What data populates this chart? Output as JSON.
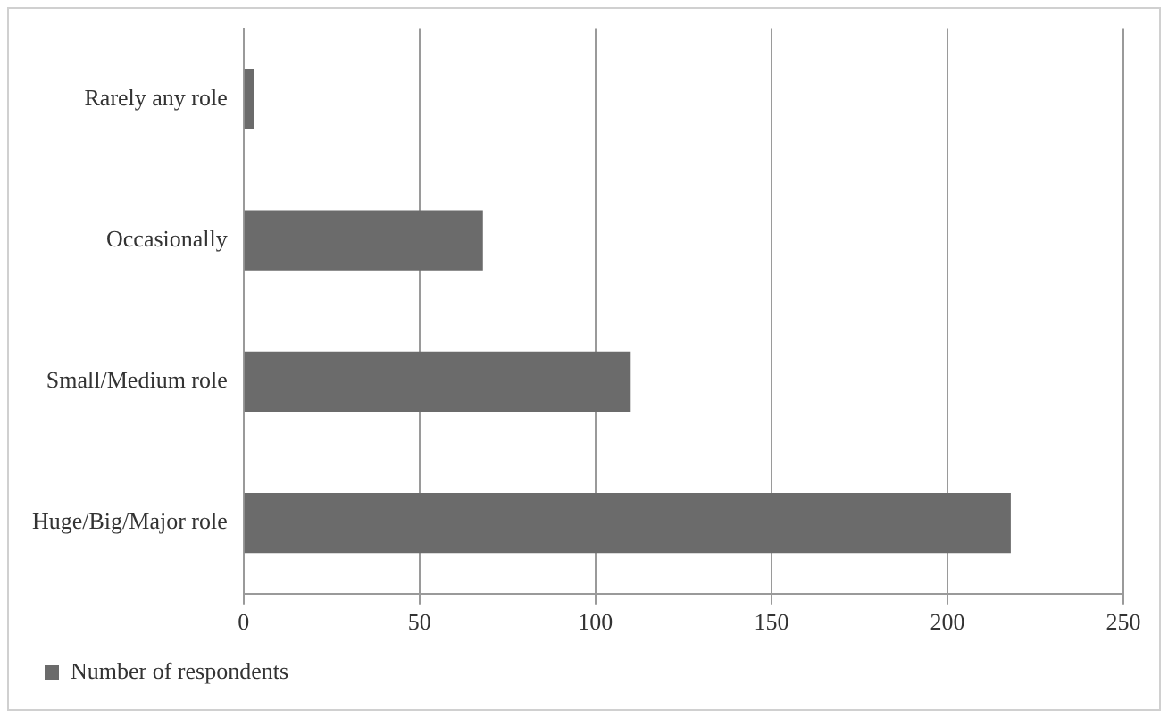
{
  "chart_data": {
    "type": "bar",
    "orientation": "horizontal",
    "categories": [
      "Rarely any role",
      "Occasionally",
      "Small/Medium role",
      "Huge/Big/Major role"
    ],
    "series": [
      {
        "name": "Number of respondents",
        "color": "#6b6b6b",
        "values": [
          3,
          68,
          110,
          218
        ]
      }
    ],
    "xlim": [
      0,
      250
    ],
    "xticks": [
      0,
      50,
      100,
      150,
      200,
      250
    ],
    "grid": "x",
    "legend": "bottom left"
  }
}
